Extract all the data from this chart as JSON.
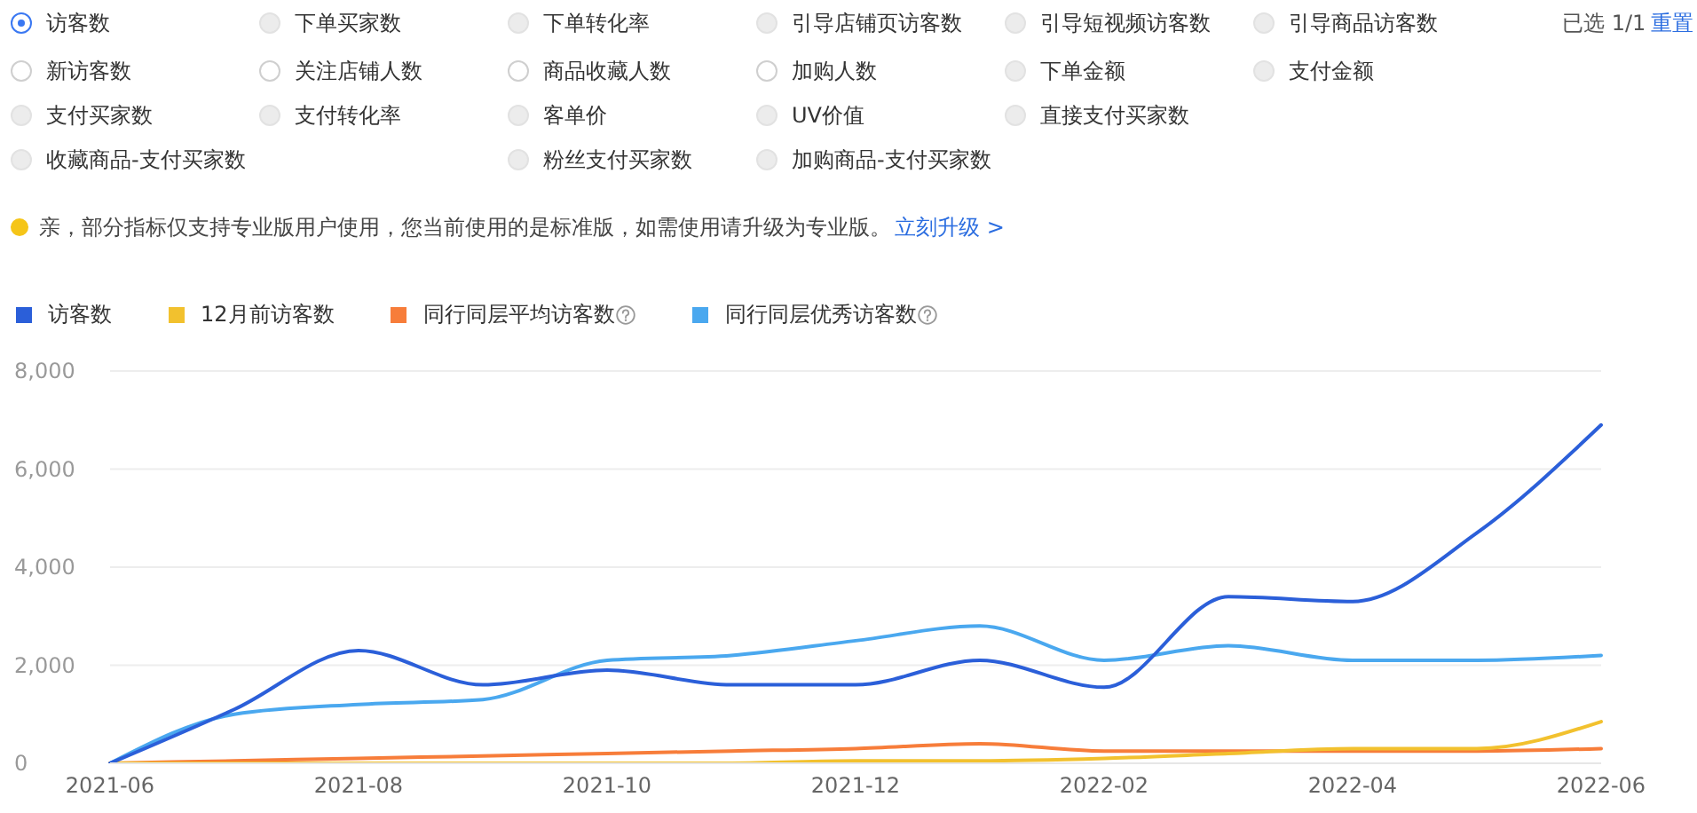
{
  "chart_data": {
    "type": "line",
    "annotations": [
      "访客数",
      "下单买家数",
      "下单转化率",
      "引导店铺页访客数",
      "引导短视频访客数",
      "引导商品访客数",
      "已选 1/1",
      "重置",
      "新访客数",
      "关注店铺人数",
      "商品收藏人数",
      "加购人数",
      "下单金额",
      "支付金额",
      "支付买家数",
      "支付转化率",
      "客单价",
      "UV价值",
      "直接支付买家数",
      "收藏商品-支付买家数",
      "粉丝支付买家数",
      "加购商品-支付买家数",
      "亲，部分指标仅支持专业版用户使用，您当前使用的是标准版，如需使用请升级为专业版。",
      "立刻升级 >"
    ],
    "categories": [
      "2021-06",
      null,
      "2021-08",
      null,
      "2021-10",
      null,
      "2021-12",
      null,
      "2022-02",
      null,
      "2022-04",
      null,
      "2022-06"
    ],
    "series": [
      {
        "name": "访客数",
        "color": "#2b5fd9",
        "values": [
          0,
          1100,
          2300,
          1600,
          1900,
          1600,
          1600,
          2100,
          1550,
          3400,
          3300,
          4700,
          6900
        ]
      },
      {
        "name": "12月前访客数",
        "color": "#f2c12e",
        "values": [
          0,
          0,
          0,
          0,
          0,
          0,
          50,
          50,
          100,
          200,
          300,
          300,
          850
        ]
      },
      {
        "name": "同行同层平均访客数",
        "color": "#f77d3a",
        "values": [
          0,
          50,
          100,
          150,
          200,
          250,
          300,
          400,
          250,
          250,
          250,
          250,
          300
        ]
      },
      {
        "name": "同行同层优秀访客数",
        "color": "#4aa8ef",
        "values": [
          0,
          1000,
          1200,
          1300,
          2100,
          2200,
          2500,
          2800,
          2100,
          2400,
          2100,
          2100,
          2200
        ]
      }
    ],
    "ylim": [
      0,
      8000
    ],
    "yticks": [
      0,
      {
        "value": 2000,
        "label": "2,000"
      },
      {
        "value": 4000,
        "label": "4,000"
      },
      {
        "value": 6000,
        "label": "6,000"
      },
      {
        "value": 8000,
        "label": "8,000"
      }
    ],
    "grid": "y",
    "legend": "top left",
    "marker": "none",
    "line_style": "solid"
  }
}
